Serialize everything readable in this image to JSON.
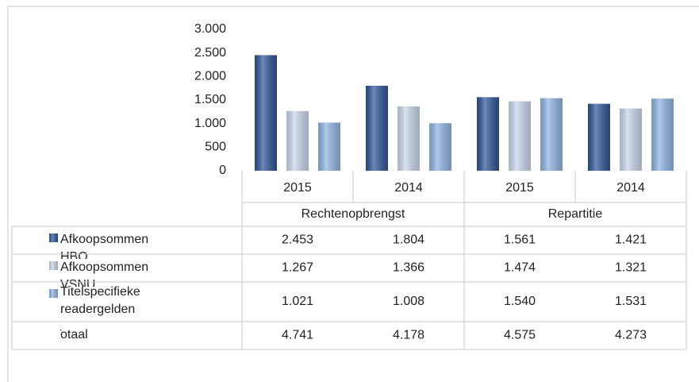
{
  "chart_data": {
    "type": "bar",
    "categories": [
      "2015",
      "2014",
      "2015",
      "2014"
    ],
    "groups": [
      {
        "name": "Rechtenopbrengst",
        "span": 2
      },
      {
        "name": "Repartitie",
        "span": 2
      }
    ],
    "series": [
      {
        "name": "Afkoopsommen HBO",
        "color": "#2f5597",
        "values": [
          2453,
          1804,
          1561,
          1421
        ],
        "value_labels": [
          "2.453",
          "1.804",
          "1.561",
          "1.421"
        ]
      },
      {
        "name": "Afkoopsommen VSNU",
        "color": "#c9d6ea",
        "values": [
          1267,
          1366,
          1474,
          1321
        ],
        "value_labels": [
          "1.267",
          "1.366",
          "1.474",
          "1.321"
        ]
      },
      {
        "name": "Titelspecifieke readergelden",
        "color": "#8fb4e3",
        "values": [
          1021,
          1008,
          1540,
          1531
        ],
        "value_labels": [
          "1.021",
          "1.008",
          "1.540",
          "1.531"
        ]
      }
    ],
    "totals": {
      "name": "Totaal",
      "values": [
        4741,
        4178,
        4575,
        4273
      ],
      "value_labels": [
        "4.741",
        "4.178",
        "4.575",
        "4.273"
      ]
    },
    "ylim": [
      0,
      3000
    ],
    "yticks": [
      0,
      {
        "value": 500,
        "label": "500"
      },
      {
        "value": 1000,
        "label": "1.000"
      },
      {
        "value": 1500,
        "label": "1.500"
      },
      {
        "value": 2000,
        "label": "2.000"
      },
      {
        "value": 2500,
        "label": "2.500"
      },
      {
        "value": 3000,
        "label": "3.000"
      }
    ]
  }
}
